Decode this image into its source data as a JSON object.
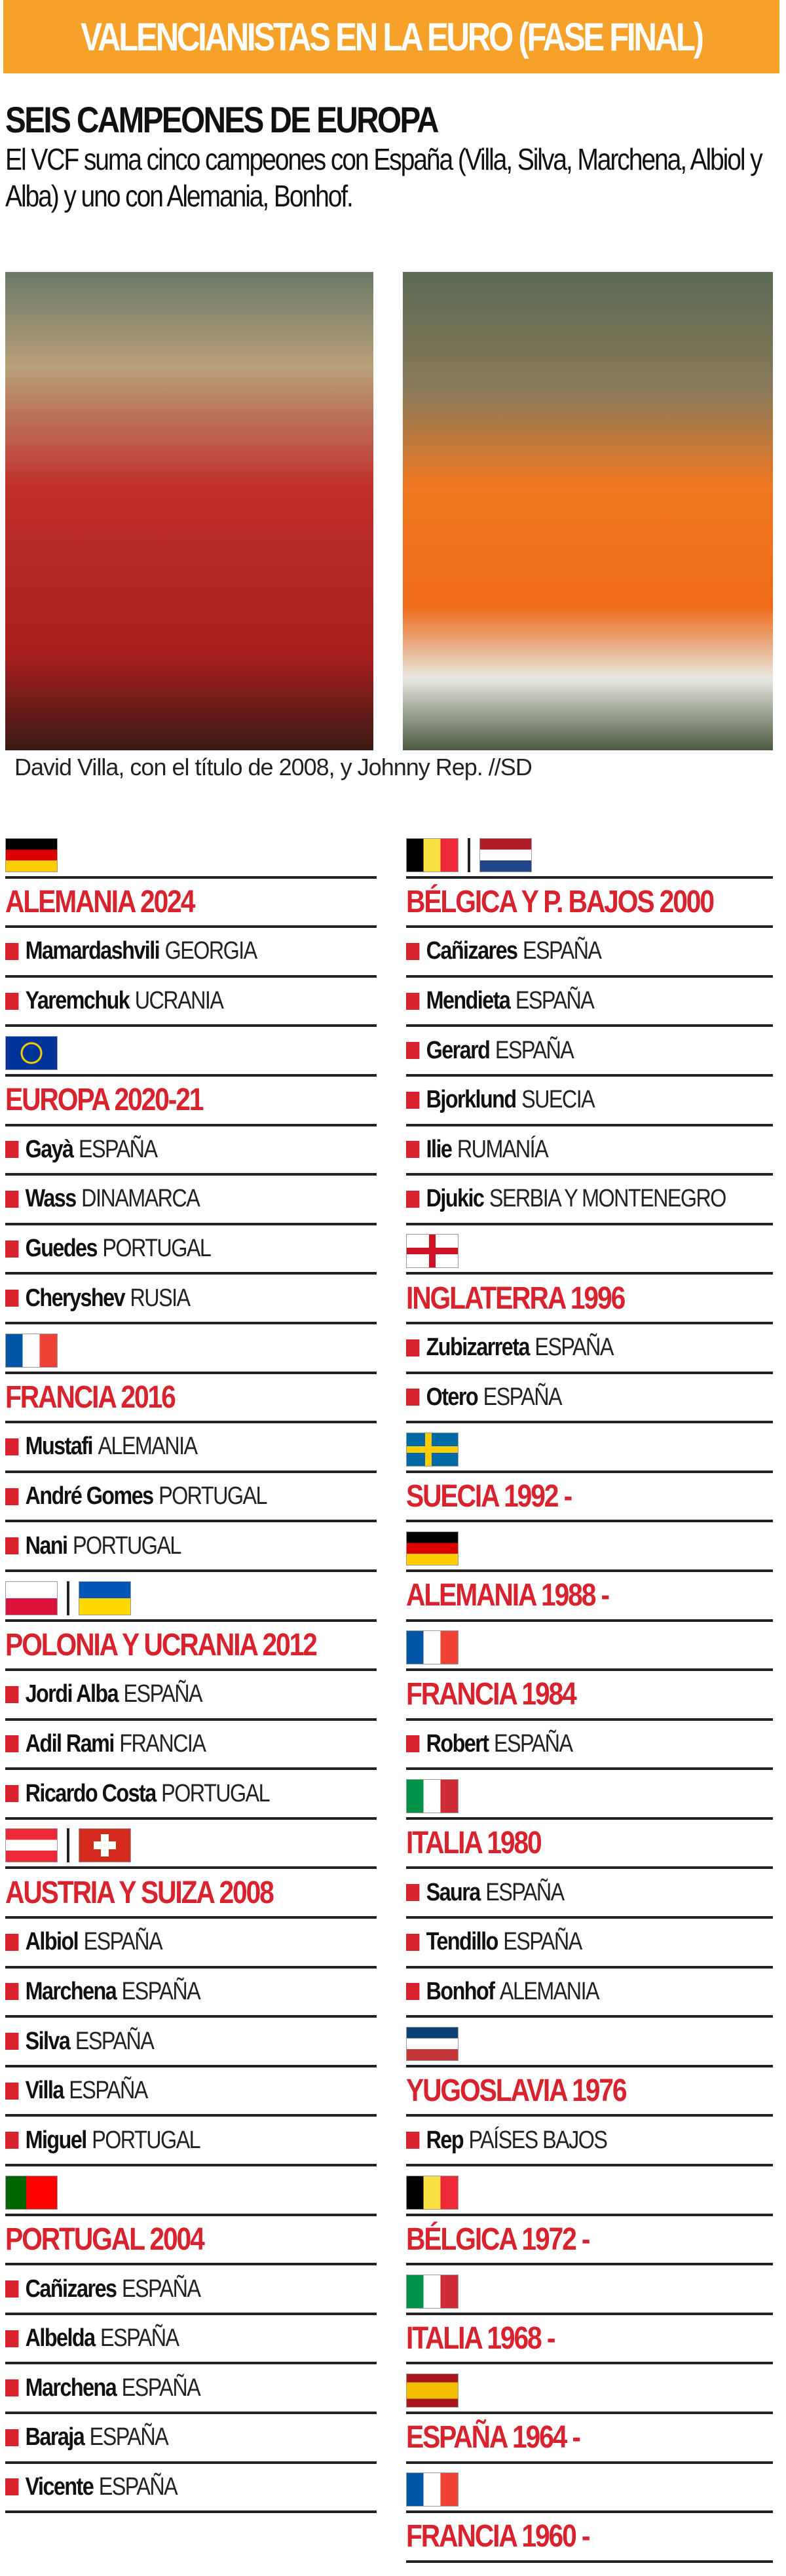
{
  "banner": {
    "title": "VALENCIANISTAS EN LA EURO (FASE FINAL)",
    "color": "#f6a12a"
  },
  "headline": "SEIS CAMPEONES DE EUROPA",
  "standfirst": "El VCF suma cinco campeones con España (Villa, Silva, Marchena, Albiol y Alba) y uno con Alemania, Bonhof.",
  "caption": "David Villa, con el título de 2008, y Johnny Rep. //SD",
  "accent": "#d8232e",
  "left": [
    {
      "flags": [
        "de"
      ],
      "title": "ALEMANIA 2024",
      "players": [
        {
          "name": "Mamardashvili",
          "nat": "GEORGIA"
        },
        {
          "name": "Yaremchuk",
          "nat": "UCRANIA"
        }
      ]
    },
    {
      "flags": [
        "eu"
      ],
      "title": "EUROPA 2020-21",
      "players": [
        {
          "name": "Gayà",
          "nat": "ESPAÑA"
        },
        {
          "name": "Wass",
          "nat": "DINAMARCA"
        },
        {
          "name": "Guedes",
          "nat": "PORTUGAL"
        },
        {
          "name": "Cheryshev",
          "nat": "RUSIA"
        }
      ]
    },
    {
      "flags": [
        "fr"
      ],
      "title": "FRANCIA 2016",
      "players": [
        {
          "name": "Mustafi",
          "nat": "ALEMANIA"
        },
        {
          "name": "André Gomes",
          "nat": "PORTUGAL"
        },
        {
          "name": "Nani",
          "nat": "PORTUGAL"
        }
      ]
    },
    {
      "flags": [
        "pl",
        "ua"
      ],
      "title": "POLONIA Y UCRANIA 2012",
      "players": [
        {
          "name": "Jordi Alba",
          "nat": "ESPAÑA"
        },
        {
          "name": "Adil Rami",
          "nat": "FRANCIA"
        },
        {
          "name": "Ricardo Costa",
          "nat": "PORTUGAL"
        }
      ]
    },
    {
      "flags": [
        "at",
        "ch"
      ],
      "title": "AUSTRIA Y SUIZA 2008",
      "players": [
        {
          "name": "Albiol",
          "nat": "ESPAÑA"
        },
        {
          "name": "Marchena",
          "nat": "ESPAÑA"
        },
        {
          "name": "Silva",
          "nat": "ESPAÑA"
        },
        {
          "name": "Villa",
          "nat": "ESPAÑA"
        },
        {
          "name": "Miguel",
          "nat": "PORTUGAL"
        }
      ]
    },
    {
      "flags": [
        "pt"
      ],
      "title": "PORTUGAL 2004",
      "players": [
        {
          "name": "Cañizares",
          "nat": "ESPAÑA"
        },
        {
          "name": "Albelda",
          "nat": "ESPAÑA"
        },
        {
          "name": "Marchena",
          "nat": "ESPAÑA"
        },
        {
          "name": "Baraja",
          "nat": "ESPAÑA"
        },
        {
          "name": "Vicente",
          "nat": "ESPAÑA"
        }
      ]
    }
  ],
  "right": [
    {
      "flags": [
        "be",
        "nl"
      ],
      "title": "BÉLGICA Y P. BAJOS 2000",
      "players": [
        {
          "name": "Cañizares",
          "nat": "ESPAÑA"
        },
        {
          "name": "Mendieta",
          "nat": "ESPAÑA"
        },
        {
          "name": "Gerard",
          "nat": "ESPAÑA"
        },
        {
          "name": "Bjorklund",
          "nat": "SUECIA"
        },
        {
          "name": "Ilie",
          "nat": "RUMANÍA"
        },
        {
          "name": "Djukic",
          "nat": "SERBIA Y MONTENEGRO"
        }
      ]
    },
    {
      "flags": [
        "en"
      ],
      "title": "INGLATERRA 1996",
      "players": [
        {
          "name": "Zubizarreta",
          "nat": "ESPAÑA"
        },
        {
          "name": "Otero",
          "nat": "ESPAÑA"
        }
      ]
    },
    {
      "flags": [
        "se"
      ],
      "title": "SUECIA 1992 -",
      "players": []
    },
    {
      "flags": [
        "de"
      ],
      "title": "ALEMANIA 1988 -",
      "players": []
    },
    {
      "flags": [
        "fr"
      ],
      "title": "FRANCIA 1984",
      "players": [
        {
          "name": "Robert",
          "nat": "ESPAÑA"
        }
      ]
    },
    {
      "flags": [
        "it"
      ],
      "title": "ITALIA 1980",
      "players": [
        {
          "name": "Saura",
          "nat": "ESPAÑA"
        },
        {
          "name": "Tendillo",
          "nat": "ESPAÑA"
        },
        {
          "name": "Bonhof",
          "nat": "ALEMANIA"
        }
      ]
    },
    {
      "flags": [
        "yu"
      ],
      "title": "YUGOSLAVIA 1976",
      "players": [
        {
          "name": "Rep",
          "nat": "PAÍSES BAJOS"
        }
      ]
    },
    {
      "flags": [
        "be"
      ],
      "title": "BÉLGICA 1972 -",
      "players": []
    },
    {
      "flags": [
        "it"
      ],
      "title": "ITALIA 1968 -",
      "players": []
    },
    {
      "flags": [
        "es"
      ],
      "title": "ESPAÑA 1964 -",
      "players": []
    },
    {
      "flags": [
        "fr"
      ],
      "title": "FRANCIA 1960 -",
      "players": []
    }
  ]
}
